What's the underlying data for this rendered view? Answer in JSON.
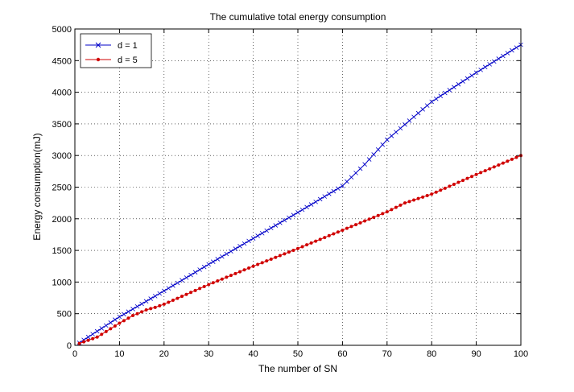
{
  "chart_data": {
    "type": "line",
    "title": "The cumulative total energy consumption",
    "xlabel": "The number of SN",
    "ylabel": "Energy consumption(mJ)",
    "xlim": [
      0,
      100
    ],
    "ylim": [
      0,
      5000
    ],
    "xticks": [
      0,
      10,
      20,
      30,
      40,
      50,
      60,
      70,
      80,
      90,
      100
    ],
    "yticks": [
      0,
      500,
      1000,
      1500,
      2000,
      2500,
      3000,
      3500,
      4000,
      4500,
      5000
    ],
    "grid": true,
    "legend_location": "top-left",
    "series": [
      {
        "name": "d = 1",
        "color": "#0000c8",
        "marker": "x",
        "x": [
          1,
          10,
          20,
          30,
          40,
          50,
          60,
          65,
          70,
          75,
          80,
          90,
          100
        ],
        "y": [
          40,
          450,
          860,
          1280,
          1690,
          2100,
          2520,
          2860,
          3250,
          3550,
          3850,
          4310,
          4750
        ]
      },
      {
        "name": "d = 5",
        "color": "#d00000",
        "marker": "dot",
        "x": [
          1,
          5,
          10,
          13,
          16,
          18,
          20,
          30,
          40,
          50,
          60,
          70,
          74,
          80,
          90,
          100
        ],
        "y": [
          30,
          130,
          350,
          470,
          560,
          600,
          650,
          960,
          1250,
          1530,
          1820,
          2110,
          2250,
          2390,
          2700,
          3000
        ]
      }
    ]
  }
}
